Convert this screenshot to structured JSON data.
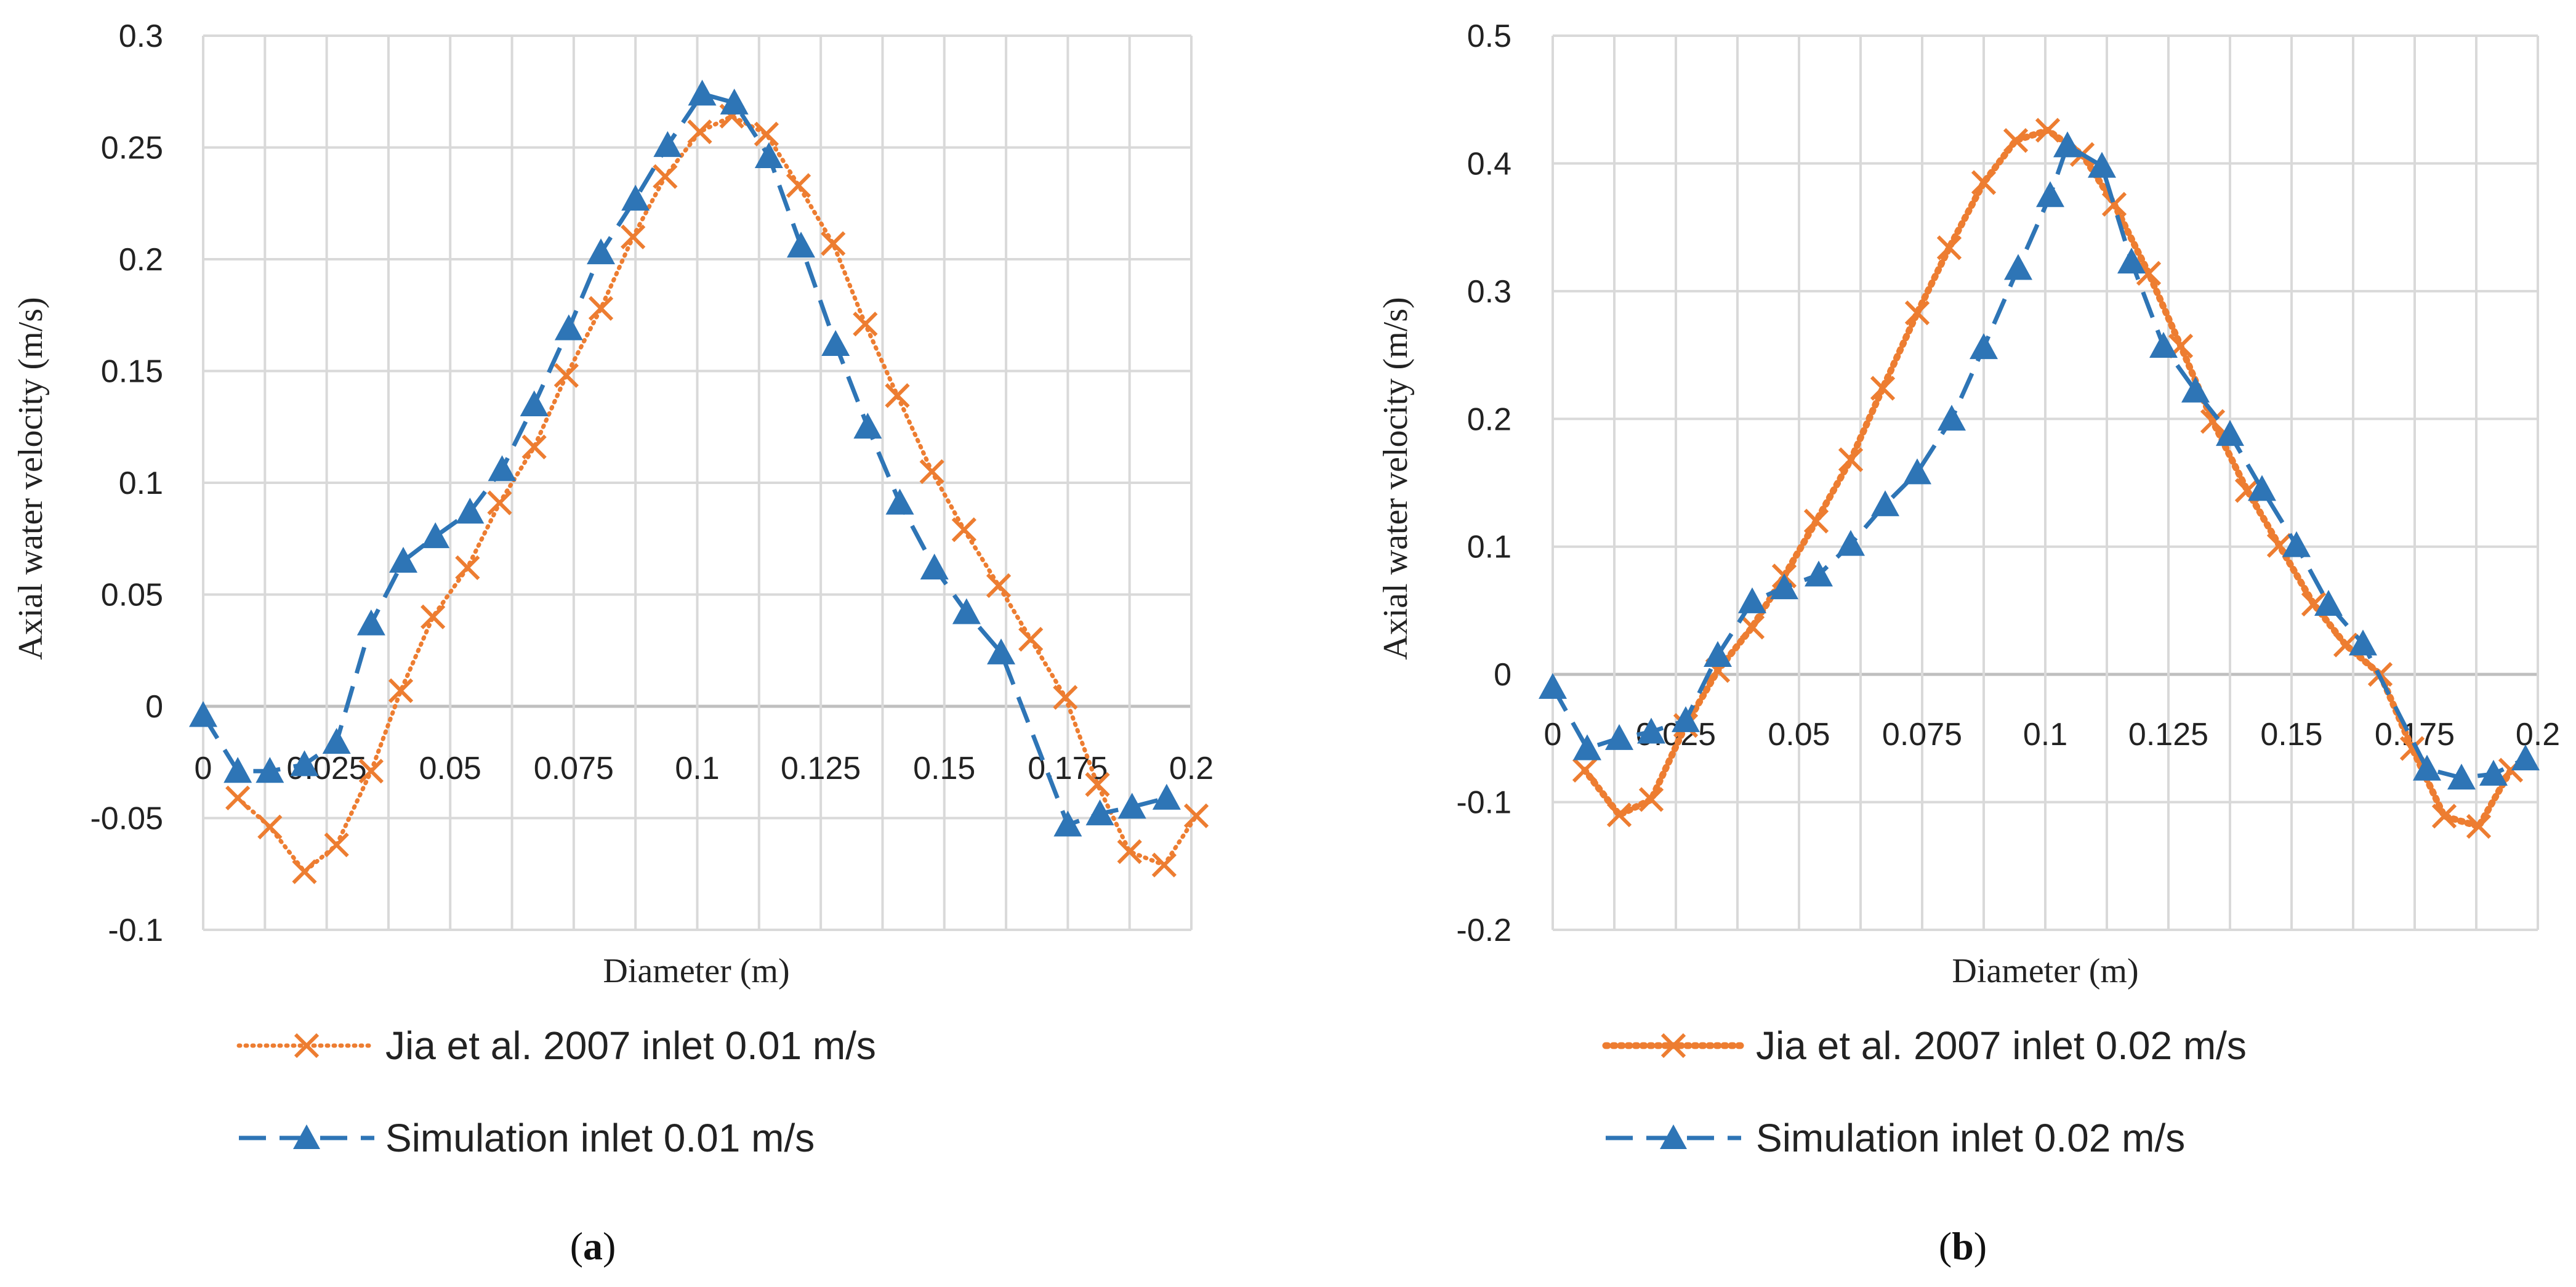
{
  "colors": {
    "orange": "#ED7D31",
    "blue": "#2E75B6",
    "grid": "#D9D9D9",
    "zero_axis": "#BFBFBF"
  },
  "chart_data": [
    {
      "type": "line",
      "caption": {
        "open": "(",
        "letter": "a",
        "close": ")"
      },
      "xlabel": "Diameter (m)",
      "ylabel": "Axial water velocity (m/s)",
      "xlim": [
        0,
        0.2
      ],
      "ylim": [
        -0.1,
        0.3
      ],
      "x_ticks": [
        "0",
        "0.025",
        "0.05",
        "0.075",
        "0.1",
        "0.125",
        "0.15",
        "0.175",
        "0.2"
      ],
      "y_ticks": [
        "0.3",
        "0.25",
        "0.2",
        "0.15",
        "0.1",
        "0.05",
        "0",
        "-0.05",
        "-0.1"
      ],
      "grid": true,
      "series": [
        {
          "name": "Jia et al. 2007 inlet 0.01 m/s",
          "color": "#ED7D31",
          "marker": "x",
          "line": "dotted",
          "x": [
            0.007,
            0.0135,
            0.0205,
            0.027,
            0.034,
            0.04,
            0.0465,
            0.0535,
            0.06,
            0.067,
            0.0735,
            0.0805,
            0.087,
            0.0935,
            0.1005,
            0.107,
            0.114,
            0.1205,
            0.1275,
            0.134,
            0.1405,
            0.1475,
            0.154,
            0.161,
            0.1675,
            0.1745,
            0.181,
            0.1875,
            0.1945,
            0.201
          ],
          "values": [
            -0.041,
            -0.054,
            -0.074,
            -0.062,
            -0.029,
            0.007,
            0.04,
            0.062,
            0.091,
            0.116,
            0.148,
            0.178,
            0.21,
            0.237,
            0.257,
            0.264,
            0.256,
            0.233,
            0.207,
            0.171,
            0.139,
            0.105,
            0.079,
            0.054,
            0.03,
            0.004,
            -0.035,
            -0.065,
            -0.071,
            -0.049
          ]
        },
        {
          "name": "Simulation inlet 0.01 m/s",
          "color": "#2E75B6",
          "marker": "triangle",
          "line": "dashed",
          "x": [
            0.0,
            0.007,
            0.0135,
            0.0205,
            0.027,
            0.034,
            0.0405,
            0.047,
            0.054,
            0.0605,
            0.067,
            0.074,
            0.0805,
            0.0875,
            0.094,
            0.101,
            0.1075,
            0.1145,
            0.121,
            0.128,
            0.1345,
            0.141,
            0.148,
            0.1545,
            0.1615,
            0.175,
            0.1815,
            0.188,
            0.195
          ],
          "values": [
            -0.004,
            -0.029,
            -0.029,
            -0.026,
            -0.016,
            0.037,
            0.065,
            0.076,
            0.087,
            0.106,
            0.135,
            0.169,
            0.203,
            0.227,
            0.251,
            0.274,
            0.27,
            0.246,
            0.206,
            0.162,
            0.125,
            0.091,
            0.062,
            0.042,
            0.024,
            -0.053,
            -0.048,
            -0.045,
            -0.041
          ]
        }
      ]
    },
    {
      "type": "line",
      "caption": {
        "open": "(",
        "letter": "b",
        "close": ")"
      },
      "xlabel": "Diameter (m)",
      "ylabel": "Axial water velocity (m/s)",
      "xlim": [
        0,
        0.2
      ],
      "ylim": [
        -0.2,
        0.5
      ],
      "x_ticks": [
        "0",
        "0.025",
        "0.05",
        "0.075",
        "0.1",
        "0.125",
        "0.15",
        "0.175",
        "0.2"
      ],
      "y_ticks": [
        "0.5",
        "0.4",
        "0.3",
        "0.2",
        "0.1",
        "0",
        "-0.1",
        "-0.2"
      ],
      "grid": true,
      "series": [
        {
          "name": "Jia et al. 2007 inlet 0.02 m/s",
          "color": "#ED7D31",
          "marker": "x",
          "line": "dotted",
          "x": [
            0.0065,
            0.0135,
            0.02,
            0.027,
            0.0335,
            0.0405,
            0.047,
            0.0535,
            0.0605,
            0.067,
            0.074,
            0.0805,
            0.0875,
            0.094,
            0.1005,
            0.1075,
            0.114,
            0.121,
            0.1275,
            0.134,
            0.141,
            0.1475,
            0.1545,
            0.161,
            0.168,
            0.1745,
            0.181,
            0.188,
            0.1945
          ],
          "values": [
            -0.075,
            -0.11,
            -0.098,
            -0.04,
            0.003,
            0.037,
            0.077,
            0.12,
            0.168,
            0.224,
            0.283,
            0.334,
            0.385,
            0.418,
            0.426,
            0.407,
            0.368,
            0.314,
            0.257,
            0.198,
            0.144,
            0.101,
            0.055,
            0.023,
            0.0,
            -0.058,
            -0.111,
            -0.119,
            -0.075
          ]
        },
        {
          "name": "Simulation inlet 0.02 m/s",
          "color": "#2E75B6",
          "marker": "triangle",
          "line": "dashed",
          "x": [
            0.0,
            0.007,
            0.0135,
            0.02,
            0.027,
            0.0335,
            0.0405,
            0.047,
            0.054,
            0.0605,
            0.0675,
            0.074,
            0.081,
            0.0875,
            0.0945,
            0.101,
            0.1045,
            0.1115,
            0.1175,
            0.124,
            0.1305,
            0.1375,
            0.144,
            0.151,
            0.1575,
            0.1645,
            0.1775,
            0.1845,
            0.191,
            0.1975
          ],
          "values": [
            -0.01,
            -0.058,
            -0.05,
            -0.045,
            -0.036,
            0.015,
            0.057,
            0.068,
            0.078,
            0.102,
            0.133,
            0.158,
            0.2,
            0.256,
            0.318,
            0.375,
            0.414,
            0.398,
            0.323,
            0.257,
            0.222,
            0.188,
            0.145,
            0.101,
            0.055,
            0.024,
            -0.074,
            -0.081,
            -0.078,
            -0.066
          ]
        }
      ]
    }
  ]
}
